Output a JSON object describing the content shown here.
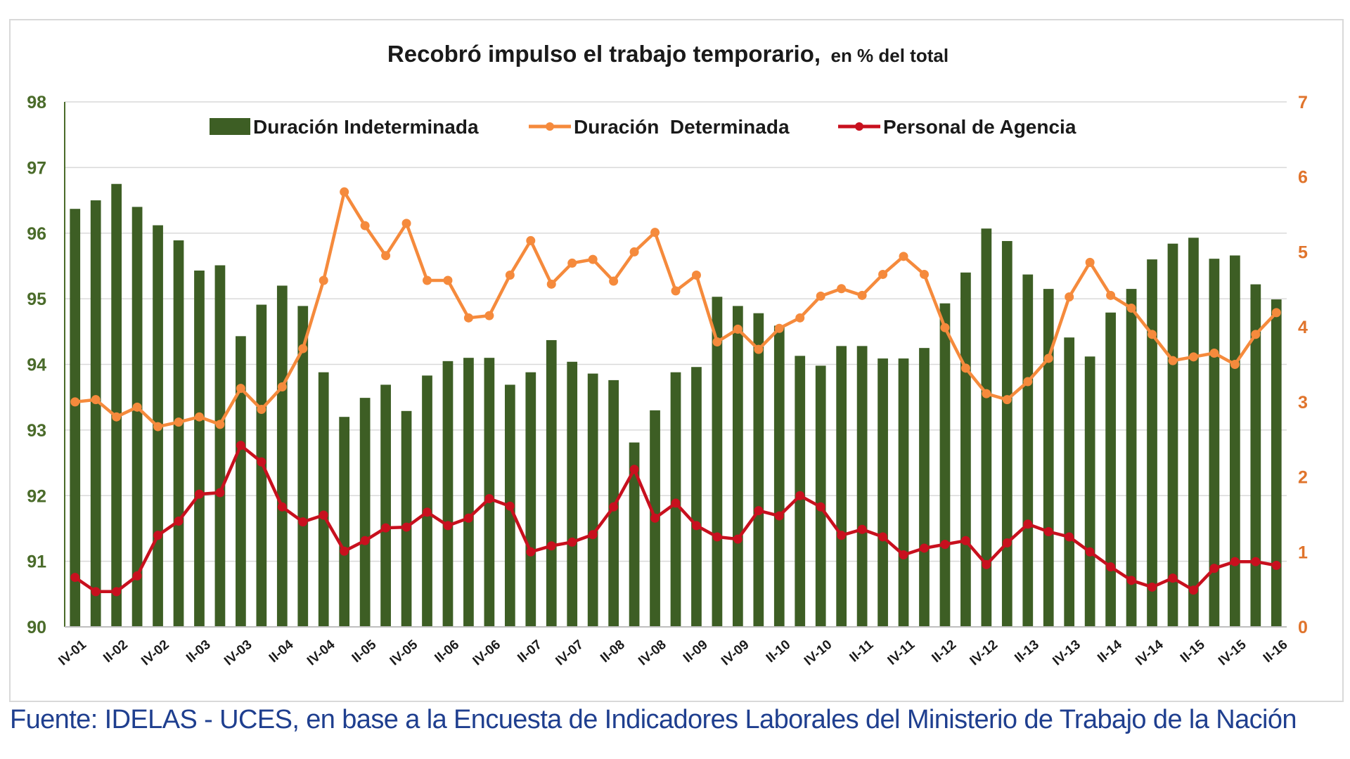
{
  "source": "Fuente: IDELAS - UCES, en base a la Encuesta de Indicadores Laborales del Ministerio de Trabajo de la Nación",
  "chart_data": {
    "type": "bar",
    "title": "Recobró impulso el trabajo temporario,",
    "subtitle": "en % del total",
    "legend_position": "top",
    "grid": true,
    "y_left": {
      "min": 90,
      "max": 98,
      "ticks": [
        "90",
        "91",
        "92",
        "93",
        "94",
        "95",
        "96",
        "97",
        "98"
      ]
    },
    "y_right": {
      "min": 0,
      "max": 7,
      "ticks": [
        "0",
        "1",
        "2",
        "3",
        "4",
        "5",
        "6",
        "7"
      ]
    },
    "categories": [
      "IV-01",
      "I-02",
      "II-02",
      "III-02",
      "IV-02",
      "I-03",
      "II-03",
      "III-03",
      "IV-03",
      "I-04",
      "II-04",
      "III-04",
      "IV-04",
      "I-05",
      "II-05",
      "III-05",
      "IV-05",
      "I-06",
      "II-06",
      "III-06",
      "IV-06",
      "I-07",
      "II-07",
      "III-07",
      "IV-07",
      "I-08",
      "II-08",
      "III-08",
      "IV-08",
      "I-09",
      "II-09",
      "III-09",
      "IV-09",
      "I-10",
      "II-10",
      "III-10",
      "IV-10",
      "I-11",
      "II-11",
      "III-11",
      "IV-11",
      "I-12",
      "II-12",
      "III-12",
      "IV-12",
      "I-13",
      "II-13",
      "III-13",
      "IV-13",
      "I-14",
      "II-14",
      "III-14",
      "IV-14",
      "I-15",
      "II-15",
      "III-15",
      "IV-15",
      "I-16",
      "II-16"
    ],
    "x_tick_labels": [
      "IV-01",
      "II-02",
      "IV-02",
      "II-03",
      "IV-03",
      "II-04",
      "IV-04",
      "II-05",
      "IV-05",
      "II-06",
      "IV-06",
      "II-07",
      "IV-07",
      "II-08",
      "IV-08",
      "II-09",
      "IV-09",
      "II-10",
      "IV-10",
      "II-11",
      "IV-11",
      "II-12",
      "IV-12",
      "II-13",
      "IV-13",
      "II-14",
      "IV-14",
      "II-15",
      "IV-15",
      "II-16"
    ],
    "series": [
      {
        "name": "Duración Indeterminada",
        "axis": "left",
        "kind": "bar",
        "color": "#3d5e24",
        "values": [
          96.37,
          96.5,
          96.75,
          96.4,
          96.12,
          95.89,
          95.43,
          95.51,
          94.43,
          94.91,
          95.2,
          94.89,
          93.88,
          93.2,
          93.49,
          93.69,
          93.29,
          93.83,
          94.05,
          94.1,
          94.1,
          93.69,
          93.88,
          94.37,
          94.04,
          93.86,
          93.76,
          92.81,
          93.3,
          93.88,
          93.96,
          95.03,
          94.89,
          94.78,
          94.59,
          94.13,
          93.98,
          94.28,
          94.28,
          94.09,
          94.09,
          94.25,
          94.93,
          95.4,
          96.07,
          95.88,
          95.37,
          95.15,
          94.41,
          94.12,
          94.79,
          95.15,
          95.6,
          95.84,
          95.93,
          95.61,
          95.66,
          95.22,
          94.99
        ]
      },
      {
        "name": "Duración  Determinada",
        "axis": "right",
        "kind": "line",
        "color": "#f58a3c",
        "values": [
          3.0,
          3.03,
          2.8,
          2.93,
          2.67,
          2.73,
          2.8,
          2.7,
          3.18,
          2.9,
          3.2,
          3.71,
          4.62,
          5.8,
          5.35,
          4.95,
          5.38,
          4.62,
          4.62,
          4.12,
          4.15,
          4.69,
          5.15,
          4.57,
          4.85,
          4.9,
          4.61,
          5.0,
          5.26,
          4.48,
          4.69,
          3.8,
          3.97,
          3.7,
          3.98,
          4.12,
          4.41,
          4.51,
          4.42,
          4.7,
          4.94,
          4.7,
          3.99,
          3.45,
          3.11,
          3.03,
          3.27,
          3.58,
          4.4,
          4.86,
          4.42,
          4.25,
          3.9,
          3.55,
          3.6,
          3.65,
          3.5,
          3.9,
          4.19
        ]
      },
      {
        "name": "Personal de Agencia",
        "axis": "right",
        "kind": "line",
        "color": "#c8101e",
        "values": [
          0.66,
          0.47,
          0.47,
          0.68,
          1.22,
          1.41,
          1.77,
          1.79,
          2.42,
          2.2,
          1.6,
          1.4,
          1.49,
          1.01,
          1.15,
          1.32,
          1.33,
          1.53,
          1.35,
          1.45,
          1.71,
          1.61,
          1.0,
          1.08,
          1.13,
          1.23,
          1.6,
          2.1,
          1.45,
          1.65,
          1.35,
          1.2,
          1.17,
          1.55,
          1.48,
          1.75,
          1.6,
          1.22,
          1.3,
          1.2,
          0.96,
          1.05,
          1.1,
          1.15,
          0.83,
          1.12,
          1.37,
          1.27,
          1.2,
          1.0,
          0.8,
          0.62,
          0.53,
          0.65,
          0.49,
          0.78,
          0.87,
          0.87,
          0.82
        ]
      }
    ]
  }
}
